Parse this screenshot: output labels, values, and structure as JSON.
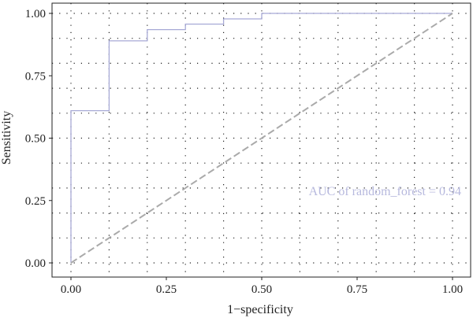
{
  "chart_data": {
    "type": "line",
    "xlabel": "1−specificity",
    "ylabel": "Sensitivity",
    "xlim": [
      0,
      1
    ],
    "ylim": [
      0,
      1
    ],
    "grid": true,
    "x_ticks": [
      "0.00",
      "0.25",
      "0.50",
      "0.75",
      "1.00"
    ],
    "y_ticks": [
      "0.00",
      "0.25",
      "0.50",
      "0.75",
      "1.00"
    ],
    "annotation": "AUC of random_forest =  0.94",
    "series": [
      {
        "style": "step",
        "color": "#a7a9d6",
        "x": [
          0,
          0,
          0.1,
          0.1,
          0.2,
          0.2,
          0.3,
          0.3,
          0.4,
          0.4,
          0.5,
          0.5,
          1.0
        ],
        "y": [
          0,
          0.61,
          0.61,
          0.89,
          0.89,
          0.935,
          0.935,
          0.957,
          0.957,
          0.978,
          0.978,
          1.0,
          1.0
        ]
      },
      {
        "style": "dashed",
        "color": "#aaaaaa",
        "x": [
          0,
          1
        ],
        "y": [
          0,
          1
        ]
      }
    ]
  }
}
